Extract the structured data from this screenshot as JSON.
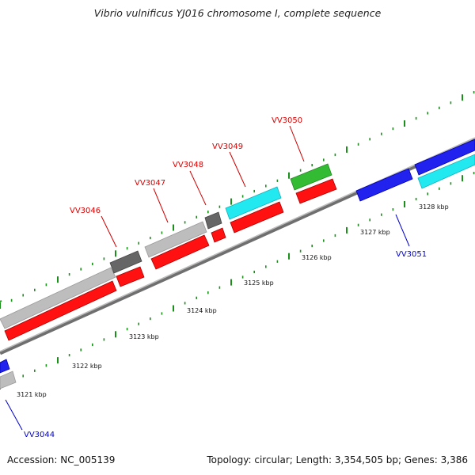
{
  "title": "Vibrio vulnificus YJ016 chromosome I, complete sequence",
  "footer": {
    "accession": "Accession: NC_005139",
    "summary": "Topology: circular; Length: 3,354,505 bp; Genes: 3,386"
  },
  "colors": {
    "backbone": "#888888",
    "tick": "#1a8f1a",
    "forward_gene": "#2222ee",
    "reverse_gene": "#ff1111",
    "cyan_feature": "#22e8f0",
    "green_feature": "#33bb33",
    "gray_feature": "#bdbdbd",
    "dark_feature": "#666666",
    "label_top": "#dd0000",
    "label_bottom": "#0000cc"
  },
  "ticks": [
    {
      "label": "3121 kbp"
    },
    {
      "label": "3122 kbp"
    },
    {
      "label": "3123 kbp"
    },
    {
      "label": "3124 kbp"
    },
    {
      "label": "3125 kbp"
    },
    {
      "label": "3126 kbp"
    },
    {
      "label": "3127 kbp"
    },
    {
      "label": "3128 kbp"
    }
  ],
  "gene_labels": [
    {
      "text": "VV3046"
    },
    {
      "text": "VV3047"
    },
    {
      "text": "VV3048"
    },
    {
      "text": "VV3049"
    },
    {
      "text": "VV3050"
    },
    {
      "text": "VV3051"
    },
    {
      "text": "VV3044"
    }
  ]
}
